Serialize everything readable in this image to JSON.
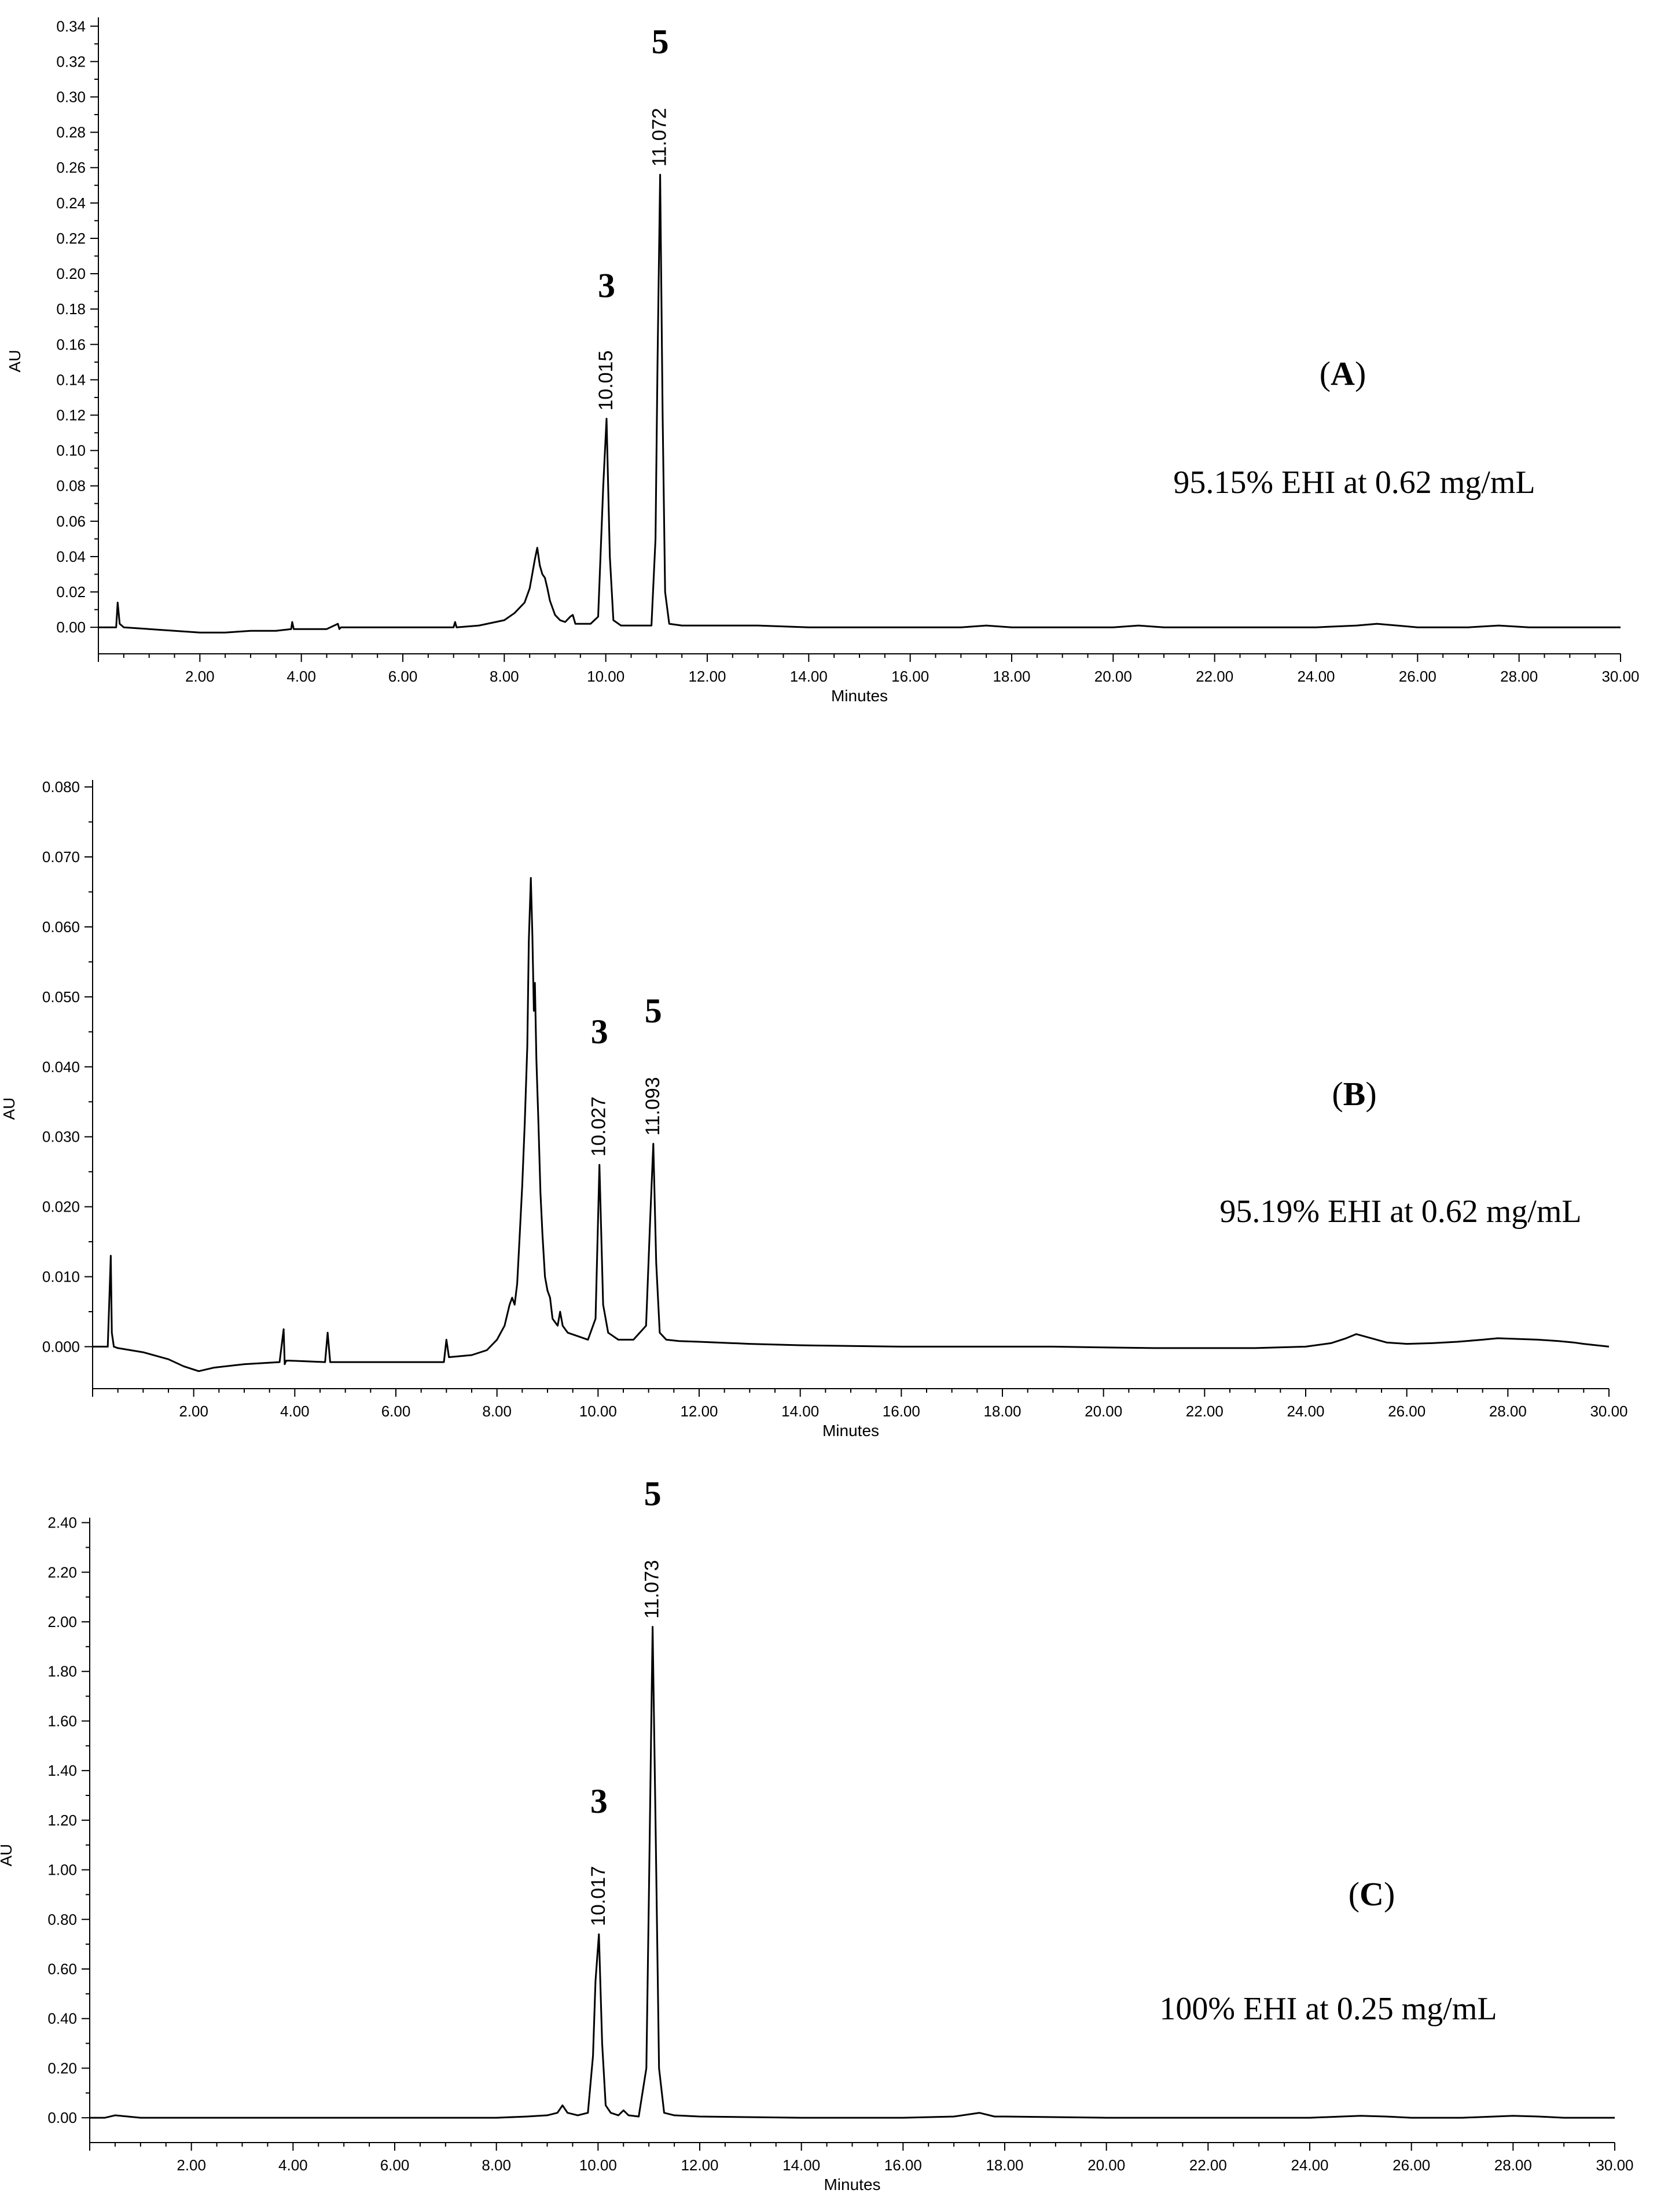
{
  "chart_data": [
    {
      "type": "line",
      "panel_label_letter": "A",
      "annotation": "95.15% EHI at 0.62 mg/mL",
      "xlabel": "Minutes",
      "ylabel": "AU",
      "xlim": [
        0.0,
        30.0
      ],
      "ylim": [
        -0.015,
        0.345
      ],
      "x_ticks": [
        "2.00",
        "4.00",
        "6.00",
        "8.00",
        "10.00",
        "12.00",
        "14.00",
        "16.00",
        "18.00",
        "20.00",
        "22.00",
        "24.00",
        "26.00",
        "28.00",
        "30.00"
      ],
      "y_ticks": [
        "0.00",
        "0.02",
        "0.04",
        "0.06",
        "0.08",
        "0.10",
        "0.12",
        "0.14",
        "0.16",
        "0.18",
        "0.20",
        "0.22",
        "0.24",
        "0.26",
        "0.28",
        "0.30",
        "0.32",
        "0.34"
      ],
      "peaks": [
        {
          "number": "3",
          "retention_time": "10.015",
          "x": 10.015,
          "y": 0.118
        },
        {
          "number": "5",
          "retention_time": "11.072",
          "x": 11.072,
          "y": 0.256
        }
      ],
      "x": [
        0.0,
        0.35,
        0.38,
        0.42,
        0.5,
        1.0,
        1.5,
        2.0,
        2.1,
        2.5,
        3.0,
        3.5,
        3.8,
        3.82,
        3.85,
        3.9,
        4.5,
        4.72,
        4.75,
        4.78,
        5.5,
        6.5,
        7.0,
        7.03,
        7.06,
        7.5,
        8.0,
        8.2,
        8.4,
        8.5,
        8.55,
        8.6,
        8.65,
        8.7,
        8.75,
        8.8,
        8.85,
        8.9,
        9.0,
        9.1,
        9.2,
        9.3,
        9.35,
        9.4,
        9.5,
        9.7,
        9.85,
        9.95,
        10.015,
        10.08,
        10.15,
        10.3,
        10.6,
        10.9,
        10.98,
        11.02,
        11.072,
        11.12,
        11.17,
        11.25,
        11.5,
        12.0,
        13.0,
        14.0,
        15.0,
        16.0,
        17.0,
        17.5,
        18.0,
        19.0,
        20.0,
        20.5,
        21.0,
        22.0,
        23.0,
        24.0,
        24.8,
        25.2,
        25.6,
        26.0,
        27.0,
        27.6,
        28.2,
        28.8,
        29.3,
        29.7,
        30.0
      ],
      "y": [
        0.0,
        0.0,
        0.014,
        0.002,
        0.0,
        -0.001,
        -0.002,
        -0.003,
        -0.003,
        -0.003,
        -0.002,
        -0.002,
        -0.001,
        0.003,
        -0.001,
        -0.001,
        -0.001,
        0.002,
        -0.001,
        0.0,
        0.0,
        0.0,
        0.0,
        0.003,
        0.0,
        0.001,
        0.004,
        0.008,
        0.014,
        0.022,
        0.03,
        0.038,
        0.045,
        0.035,
        0.03,
        0.028,
        0.022,
        0.015,
        0.007,
        0.004,
        0.003,
        0.006,
        0.007,
        0.002,
        0.002,
        0.002,
        0.006,
        0.08,
        0.118,
        0.04,
        0.004,
        0.001,
        0.001,
        0.001,
        0.05,
        0.15,
        0.256,
        0.12,
        0.02,
        0.002,
        0.001,
        0.001,
        0.001,
        0.0,
        0.0,
        0.0,
        0.0,
        0.001,
        0.0,
        0.0,
        0.0,
        0.001,
        0.0,
        0.0,
        0.0,
        0.0,
        0.001,
        0.002,
        0.001,
        0.0,
        0.0,
        0.001,
        0.0,
        0.0,
        0.0,
        0.0,
        0.0
      ]
    },
    {
      "type": "line",
      "panel_label_letter": "B",
      "annotation": "95.19% EHI at 0.62 mg/mL",
      "xlabel": "Minutes",
      "ylabel": "AU",
      "xlim": [
        0.0,
        30.0
      ],
      "ylim": [
        -0.006,
        0.081
      ],
      "x_ticks": [
        "2.00",
        "4.00",
        "6.00",
        "8.00",
        "10.00",
        "12.00",
        "14.00",
        "16.00",
        "18.00",
        "20.00",
        "22.00",
        "24.00",
        "26.00",
        "28.00",
        "30.00"
      ],
      "y_ticks": [
        "0.000",
        "0.010",
        "0.020",
        "0.030",
        "0.040",
        "0.050",
        "0.060",
        "0.070",
        "0.080"
      ],
      "peaks": [
        {
          "number": "3",
          "retention_time": "10.027",
          "x": 10.027,
          "y": 0.026
        },
        {
          "number": "5",
          "retention_time": "11.093",
          "x": 11.093,
          "y": 0.029
        }
      ],
      "x": [
        0.0,
        0.3,
        0.36,
        0.38,
        0.42,
        0.5,
        1.0,
        1.5,
        1.8,
        2.1,
        2.4,
        3.0,
        3.7,
        3.78,
        3.8,
        3.83,
        3.9,
        4.6,
        4.65,
        4.7,
        4.75,
        5.5,
        6.5,
        6.95,
        7.0,
        7.05,
        7.5,
        7.8,
        8.0,
        8.15,
        8.25,
        8.3,
        8.35,
        8.4,
        8.45,
        8.5,
        8.55,
        8.6,
        8.63,
        8.67,
        8.7,
        8.73,
        8.75,
        8.78,
        8.82,
        8.86,
        8.9,
        8.95,
        9.0,
        9.05,
        9.1,
        9.2,
        9.25,
        9.3,
        9.4,
        9.6,
        9.8,
        9.95,
        10.027,
        10.1,
        10.2,
        10.4,
        10.7,
        10.95,
        11.03,
        11.093,
        11.15,
        11.22,
        11.35,
        11.6,
        12.0,
        13.0,
        14.0,
        15.0,
        16.0,
        17.0,
        18.0,
        19.0,
        20.0,
        21.0,
        22.0,
        23.0,
        24.0,
        24.5,
        24.8,
        25.0,
        25.3,
        25.6,
        26.0,
        26.5,
        27.0,
        27.5,
        27.8,
        28.2,
        28.6,
        29.0,
        29.3,
        29.5,
        30.0
      ],
      "y": [
        0.0,
        0.0,
        0.013,
        0.002,
        0.0,
        -0.0002,
        -0.0008,
        -0.0018,
        -0.0028,
        -0.0035,
        -0.003,
        -0.0025,
        -0.0022,
        0.0025,
        -0.0025,
        -0.002,
        -0.002,
        -0.0022,
        0.002,
        -0.0022,
        -0.0022,
        -0.0022,
        -0.0022,
        -0.0022,
        0.001,
        -0.0015,
        -0.0012,
        -0.0005,
        0.001,
        0.003,
        0.006,
        0.007,
        0.006,
        0.009,
        0.016,
        0.023,
        0.032,
        0.043,
        0.058,
        0.067,
        0.059,
        0.048,
        0.052,
        0.041,
        0.032,
        0.022,
        0.016,
        0.01,
        0.008,
        0.007,
        0.004,
        0.003,
        0.005,
        0.003,
        0.002,
        0.0015,
        0.001,
        0.004,
        0.026,
        0.006,
        0.002,
        0.001,
        0.001,
        0.003,
        0.018,
        0.029,
        0.012,
        0.002,
        0.001,
        0.0008,
        0.0007,
        0.0004,
        0.0002,
        0.0001,
        0.0,
        0.0,
        0.0,
        0.0,
        -0.0001,
        -0.0002,
        -0.0002,
        -0.0002,
        0.0,
        0.0005,
        0.0012,
        0.0018,
        0.0012,
        0.0006,
        0.0004,
        0.0005,
        0.0007,
        0.001,
        0.0012,
        0.0011,
        0.001,
        0.0008,
        0.0006,
        0.0004,
        0.0
      ]
    },
    {
      "type": "line",
      "panel_label_letter": "C",
      "annotation": "100% EHI at 0.25 mg/mL",
      "xlabel": "Minutes",
      "ylabel": "AU",
      "xlim": [
        0.0,
        30.0
      ],
      "ylim": [
        -0.1,
        2.42
      ],
      "x_ticks": [
        "2.00",
        "4.00",
        "6.00",
        "8.00",
        "10.00",
        "12.00",
        "14.00",
        "16.00",
        "18.00",
        "20.00",
        "22.00",
        "24.00",
        "26.00",
        "28.00",
        "30.00"
      ],
      "y_ticks": [
        "0.00",
        "0.20",
        "0.40",
        "0.60",
        "0.80",
        "1.00",
        "1.20",
        "1.40",
        "1.60",
        "1.80",
        "2.00",
        "2.20",
        "2.40"
      ],
      "peaks": [
        {
          "number": "3",
          "retention_time": "10.017",
          "x": 10.017,
          "y": 0.74
        },
        {
          "number": "5",
          "retention_time": "11.073",
          "x": 11.073,
          "y": 1.98
        }
      ],
      "x": [
        0.0,
        0.3,
        0.5,
        1.0,
        3.0,
        5.0,
        7.0,
        8.0,
        8.6,
        9.0,
        9.2,
        9.3,
        9.4,
        9.6,
        9.8,
        9.9,
        9.95,
        10.017,
        10.08,
        10.15,
        10.25,
        10.4,
        10.5,
        10.6,
        10.8,
        10.95,
        11.0,
        11.073,
        11.13,
        11.2,
        11.3,
        11.5,
        12.0,
        14.0,
        16.0,
        17.0,
        17.5,
        17.8,
        18.0,
        20.0,
        22.0,
        24.0,
        25.0,
        25.5,
        26.0,
        27.0,
        28.0,
        28.5,
        29.0,
        30.0
      ],
      "y": [
        0.0,
        0.0,
        0.01,
        0.0,
        0.0,
        0.0,
        0.0,
        0.0,
        0.005,
        0.01,
        0.02,
        0.05,
        0.02,
        0.01,
        0.02,
        0.25,
        0.55,
        0.74,
        0.3,
        0.05,
        0.02,
        0.01,
        0.03,
        0.01,
        0.005,
        0.2,
        0.9,
        1.98,
        1.2,
        0.2,
        0.02,
        0.01,
        0.005,
        0.0,
        0.0,
        0.005,
        0.02,
        0.005,
        0.005,
        0.0,
        0.0,
        0.0,
        0.008,
        0.005,
        0.0,
        0.0,
        0.008,
        0.005,
        0.0,
        0.0
      ]
    }
  ]
}
